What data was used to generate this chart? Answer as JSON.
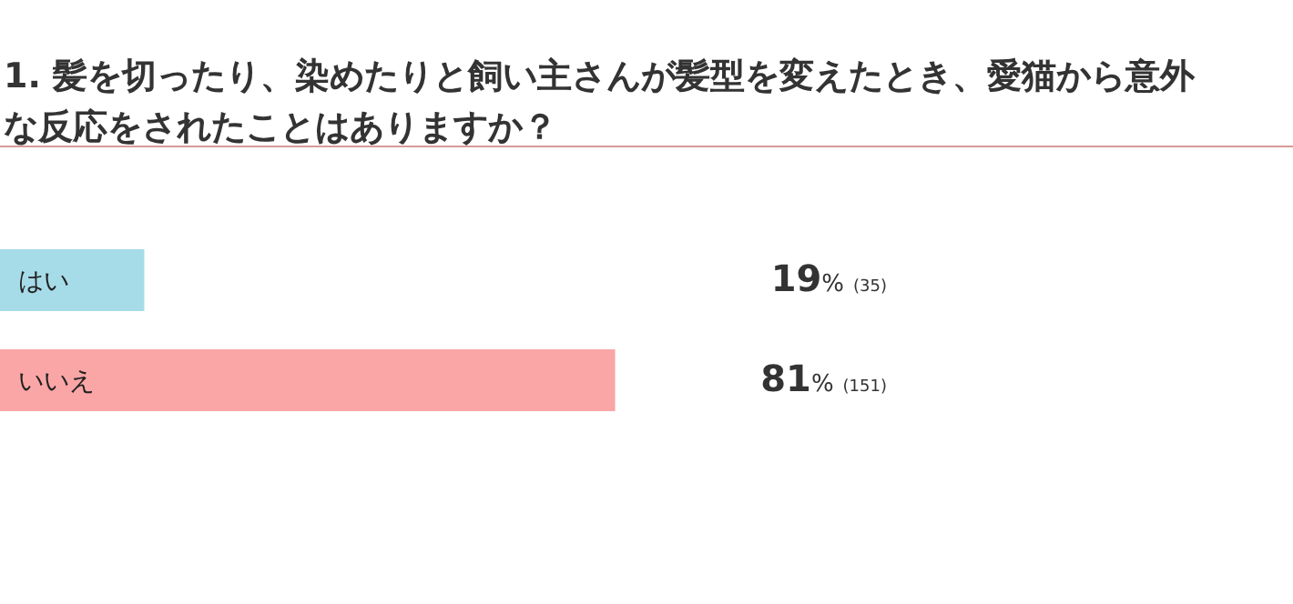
{
  "chart_data": {
    "type": "bar",
    "orientation": "horizontal",
    "title": "1. 髪を切ったり、染めたりと飼い主さんが髪型を変えたとき、愛猫から意外な反応をされたことはありますか？",
    "categories": [
      "はい",
      "いいえ"
    ],
    "values": [
      19,
      81
    ],
    "colors": [
      "#a6dce8",
      "#fba6a6"
    ],
    "value_labels": [
      "19% (35)",
      "81% (151)"
    ]
  }
}
